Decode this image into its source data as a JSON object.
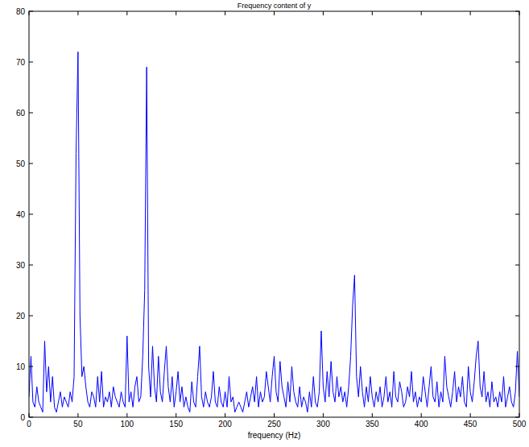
{
  "chart_data": {
    "type": "line",
    "title": "Frequency content of y",
    "x_label": "frequency (Hz)",
    "x": [
      0,
      2,
      4,
      6,
      8,
      10,
      12,
      14,
      16,
      18,
      20,
      22,
      24,
      26,
      28,
      30,
      32,
      34,
      36,
      38,
      40,
      42,
      44,
      46,
      48,
      50,
      52,
      54,
      56,
      58,
      60,
      62,
      64,
      66,
      68,
      70,
      72,
      74,
      76,
      78,
      80,
      82,
      84,
      86,
      88,
      90,
      92,
      94,
      96,
      98,
      100,
      102,
      104,
      106,
      108,
      110,
      112,
      114,
      116,
      118,
      120,
      122,
      124,
      126,
      128,
      130,
      132,
      134,
      136,
      138,
      140,
      142,
      144,
      146,
      148,
      150,
      152,
      154,
      156,
      158,
      160,
      162,
      164,
      166,
      168,
      170,
      172,
      174,
      176,
      178,
      180,
      182,
      184,
      186,
      188,
      190,
      192,
      194,
      196,
      198,
      200,
      202,
      204,
      206,
      208,
      210,
      212,
      214,
      216,
      218,
      220,
      222,
      224,
      226,
      228,
      230,
      232,
      234,
      236,
      238,
      240,
      242,
      244,
      246,
      248,
      250,
      252,
      254,
      256,
      258,
      260,
      262,
      264,
      266,
      268,
      270,
      272,
      274,
      276,
      278,
      280,
      282,
      284,
      286,
      288,
      290,
      292,
      294,
      296,
      298,
      300,
      302,
      304,
      306,
      308,
      310,
      312,
      314,
      316,
      318,
      320,
      322,
      324,
      326,
      328,
      330,
      332,
      334,
      336,
      338,
      340,
      342,
      344,
      346,
      348,
      350,
      352,
      354,
      356,
      358,
      360,
      362,
      364,
      366,
      368,
      370,
      372,
      374,
      376,
      378,
      380,
      382,
      384,
      386,
      388,
      390,
      392,
      394,
      396,
      398,
      400,
      402,
      404,
      406,
      408,
      410,
      412,
      414,
      416,
      418,
      420,
      422,
      424,
      426,
      428,
      430,
      432,
      434,
      436,
      438,
      440,
      442,
      444,
      446,
      448,
      450,
      452,
      454,
      456,
      458,
      460,
      462,
      464,
      466,
      468,
      470,
      472,
      474,
      476,
      478,
      480,
      482,
      484,
      486,
      488,
      490,
      492,
      494,
      496,
      498,
      500
    ],
    "values": [
      4,
      12,
      3,
      2,
      6,
      3,
      2,
      1,
      15,
      5,
      10,
      3,
      8,
      2,
      1,
      3,
      5,
      2,
      4,
      3,
      2,
      5,
      3,
      8,
      52,
      72,
      20,
      8,
      10,
      6,
      3,
      2,
      5,
      4,
      2,
      8,
      3,
      9,
      2,
      4,
      3,
      5,
      2,
      6,
      4,
      3,
      2,
      5,
      3,
      2,
      16,
      3,
      5,
      2,
      6,
      8,
      3,
      4,
      12,
      25,
      69,
      10,
      4,
      14,
      6,
      3,
      12,
      5,
      3,
      9,
      14,
      6,
      3,
      8,
      2,
      5,
      9,
      3,
      6,
      2,
      4,
      2,
      1,
      7,
      3,
      2,
      8,
      14,
      4,
      2,
      5,
      3,
      2,
      4,
      9,
      3,
      2,
      6,
      3,
      2,
      5,
      2,
      8,
      3,
      4,
      1,
      2,
      3,
      2,
      1,
      3,
      5,
      2,
      4,
      6,
      3,
      8,
      2,
      5,
      3,
      4,
      9,
      6,
      3,
      8,
      12,
      5,
      3,
      11,
      6,
      4,
      2,
      7,
      3,
      10,
      5,
      3,
      2,
      6,
      2,
      4,
      3,
      1,
      5,
      2,
      8,
      3,
      2,
      5,
      17,
      6,
      3,
      9,
      4,
      11,
      5,
      3,
      8,
      4,
      6,
      3,
      5,
      2,
      6,
      12,
      22,
      28,
      8,
      4,
      10,
      5,
      2,
      6,
      3,
      8,
      4,
      2,
      5,
      3,
      6,
      2,
      4,
      8,
      3,
      5,
      2,
      9,
      4,
      3,
      7,
      5,
      2,
      3,
      6,
      4,
      9,
      3,
      5,
      2,
      4,
      3,
      8,
      5,
      2,
      6,
      10,
      4,
      3,
      7,
      2,
      5,
      3,
      12,
      6,
      4,
      2,
      5,
      9,
      3,
      6,
      4,
      8,
      3,
      2,
      10,
      5,
      3,
      7,
      12,
      15,
      6,
      4,
      9,
      3,
      5,
      2,
      7,
      3,
      4,
      2,
      5,
      3,
      8,
      2,
      4,
      6,
      3,
      2,
      5,
      13,
      4
    ],
    "color": "#0000ff",
    "line_style": "solid",
    "marker": "none",
    "xlim": [
      0,
      500
    ],
    "xticks": [
      0,
      50,
      100,
      150,
      200,
      250,
      300,
      350,
      400,
      450,
      500
    ],
    "ylim": [
      0,
      80
    ],
    "yticks": [
      0,
      10,
      20,
      30,
      40,
      50,
      60,
      70,
      80
    ],
    "grid": false
  }
}
